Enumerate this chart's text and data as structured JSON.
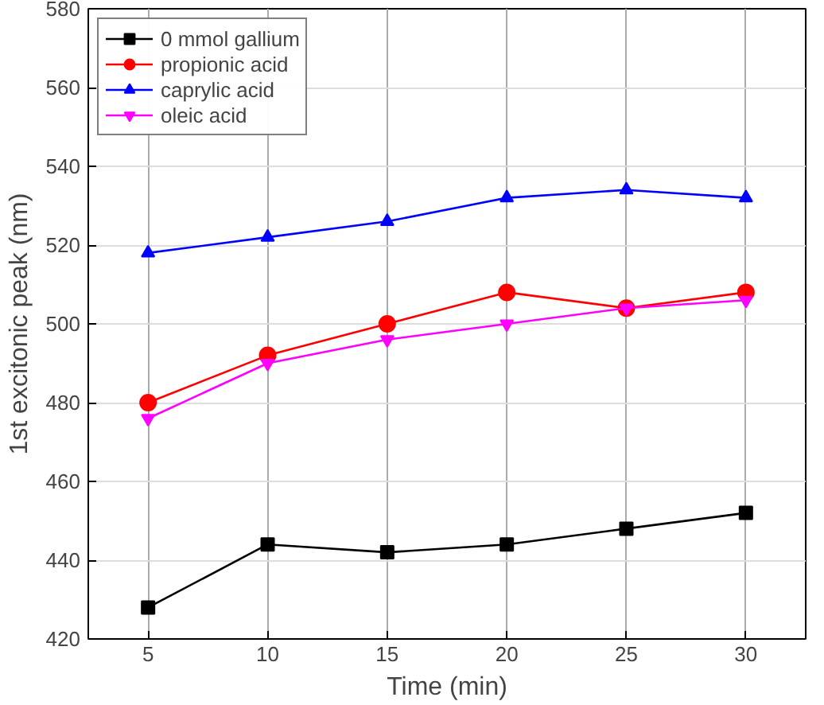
{
  "chart_data": {
    "type": "line",
    "xlabel": "Time (min)",
    "ylabel": "1st excitonic peak (nm)",
    "x": [
      5,
      10,
      15,
      20,
      25,
      30
    ],
    "series": [
      {
        "name": "0 mmol gallium",
        "color": "#000000",
        "marker": "square",
        "values": [
          428,
          444,
          442,
          444,
          448,
          452
        ]
      },
      {
        "name": "propionic acid",
        "color": "#ff0000",
        "marker": "circle",
        "values": [
          480,
          492,
          500,
          508,
          504,
          508
        ]
      },
      {
        "name": "caprylic acid",
        "color": "#0000ff",
        "marker": "triangle",
        "values": [
          518,
          522,
          526,
          532,
          534,
          532
        ]
      },
      {
        "name": "oleic acid",
        "color": "#ff00ff",
        "marker": "triangle_down",
        "values": [
          476,
          490,
          496,
          500,
          504,
          506
        ]
      }
    ],
    "xlim": [
      2.5,
      32.5
    ],
    "xticks": [
      5,
      10,
      15,
      20,
      25,
      30
    ],
    "ylim": [
      420,
      580
    ],
    "yticks": [
      420,
      440,
      460,
      480,
      500,
      520,
      540,
      560,
      580
    ],
    "grid": true,
    "legend": "top left",
    "line_style": "solid"
  }
}
